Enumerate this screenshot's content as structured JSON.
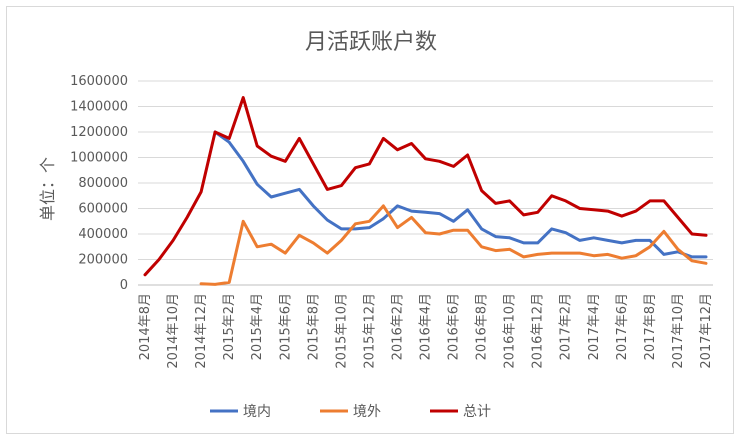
{
  "chart_data": {
    "type": "line",
    "title": "月活跃账户数",
    "xlabel": "",
    "ylabel": "单位：个",
    "ylim": [
      0,
      1600000
    ],
    "yticks": [
      0,
      200000,
      400000,
      600000,
      800000,
      1000000,
      1200000,
      1400000,
      1600000
    ],
    "ytick_labels": [
      "0",
      "200000",
      "400000",
      "600000",
      "800000",
      "1000000",
      "1200000",
      "1400000",
      "1600000"
    ],
    "grid": true,
    "legend_position": "bottom",
    "categories": [
      "2014年8月",
      "2014年9月",
      "2014年10月",
      "2014年11月",
      "2014年12月",
      "2015年1月",
      "2015年2月",
      "2015年3月",
      "2015年4月",
      "2015年5月",
      "2015年6月",
      "2015年7月",
      "2015年8月",
      "2015年9月",
      "2015年10月",
      "2015年11月",
      "2015年12月",
      "2016年1月",
      "2016年2月",
      "2016年3月",
      "2016年4月",
      "2016年5月",
      "2016年6月",
      "2016年7月",
      "2016年8月",
      "2016年9月",
      "2016年10月",
      "2016年11月",
      "2016年12月",
      "2017年1月",
      "2017年2月",
      "2017年3月",
      "2017年4月",
      "2017年5月",
      "2017年6月",
      "2017年7月",
      "2017年8月",
      "2017年9月",
      "2017年10月",
      "2017年11月",
      "2017年12月"
    ],
    "x_tick_labels": [
      "2014年8月",
      "2014年10月",
      "2014年12月",
      "2015年2月",
      "2015年4月",
      "2015年6月",
      "2015年8月",
      "2015年10月",
      "2015年12月",
      "2016年2月",
      "2016年4月",
      "2016年6月",
      "2016年8月",
      "2016年10月",
      "2016年12月",
      "2017年2月",
      "2017年4月",
      "2017年6月",
      "2017年8月",
      "2017年10月",
      "2017年12月"
    ],
    "series": [
      {
        "name": "境内",
        "color": "#4472C4",
        "values": [
          null,
          null,
          null,
          null,
          null,
          1200000,
          1120000,
          970000,
          790000,
          690000,
          720000,
          750000,
          620000,
          510000,
          440000,
          440000,
          450000,
          520000,
          620000,
          580000,
          570000,
          560000,
          500000,
          590000,
          440000,
          380000,
          370000,
          330000,
          330000,
          440000,
          410000,
          350000,
          370000,
          350000,
          330000,
          350000,
          350000,
          240000,
          260000,
          220000,
          220000
        ]
      },
      {
        "name": "境外",
        "color": "#ED7D31",
        "values": [
          null,
          null,
          null,
          null,
          10000,
          5000,
          20000,
          500000,
          300000,
          320000,
          250000,
          390000,
          330000,
          250000,
          350000,
          480000,
          500000,
          620000,
          450000,
          530000,
          410000,
          400000,
          430000,
          430000,
          300000,
          270000,
          280000,
          220000,
          240000,
          250000,
          250000,
          250000,
          230000,
          240000,
          210000,
          230000,
          300000,
          420000,
          280000,
          190000,
          170000
        ]
      },
      {
        "name": "总计",
        "color": "#C00000",
        "values": [
          80000,
          200000,
          350000,
          530000,
          730000,
          1200000,
          1150000,
          1470000,
          1090000,
          1010000,
          970000,
          1150000,
          950000,
          750000,
          780000,
          920000,
          950000,
          1150000,
          1060000,
          1110000,
          990000,
          970000,
          930000,
          1020000,
          740000,
          640000,
          660000,
          550000,
          570000,
          700000,
          660000,
          600000,
          590000,
          580000,
          540000,
          580000,
          660000,
          660000,
          530000,
          400000,
          390000
        ]
      }
    ]
  }
}
